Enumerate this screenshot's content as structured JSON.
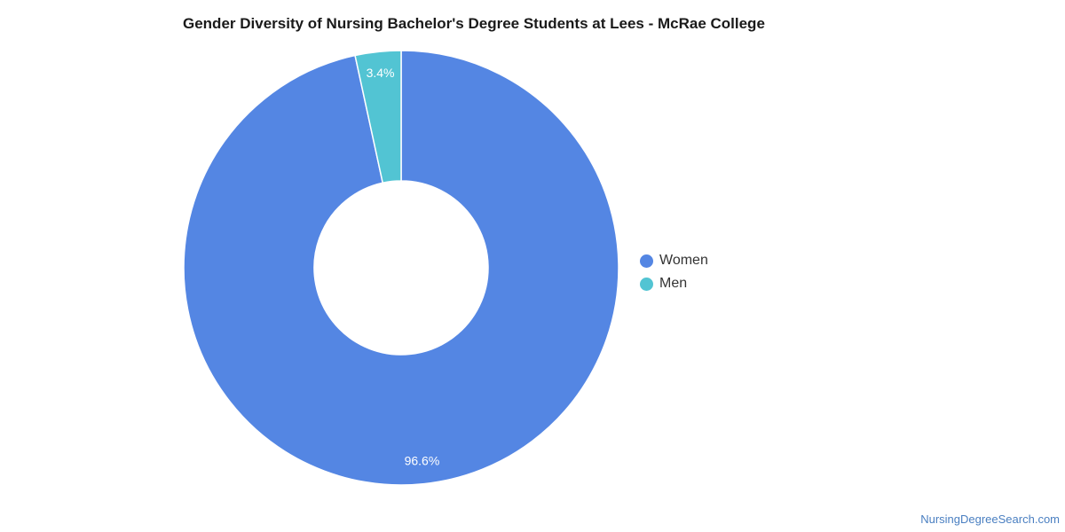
{
  "chart_data": {
    "type": "pie",
    "title": "Gender Diversity of Nursing Bachelor's Degree Students at Lees - McRae College",
    "donut": true,
    "categories": [
      "Women",
      "Men"
    ],
    "values": [
      96.6,
      3.4
    ],
    "value_labels": [
      "96.6%",
      "3.4%"
    ],
    "colors": [
      "#5486e3",
      "#52c4d3"
    ],
    "legend_position": "right"
  },
  "legend": [
    {
      "label": "Women",
      "color": "#5486e3"
    },
    {
      "label": "Men",
      "color": "#52c4d3"
    }
  ],
  "source": {
    "text": "NursingDegreeSearch.com"
  }
}
